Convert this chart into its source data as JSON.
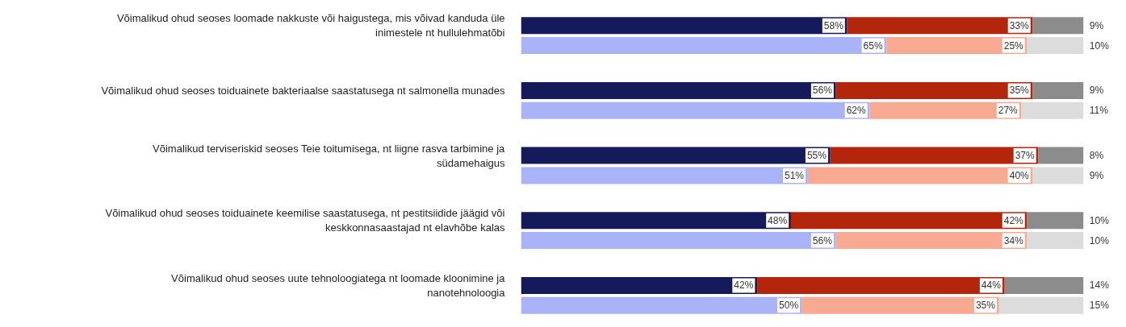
{
  "chart_data": {
    "type": "bar",
    "orientation": "horizontal",
    "stacked": true,
    "tick_labels": "y",
    "categories": [
      "Võimalikud ohud seoses loomade nakkuste või haigustega, mis võivad kanduda üle\ninimestele nt hullulehmatõbi",
      null,
      "Võimalikud ohud seoses toiduainete bakteriaalse saastatusega nt salmonella munades",
      null,
      "Võimalikud terviseriskid seoses Teie toitumisega, nt liigne rasva tarbimine ja\nsüdamehaigus",
      null,
      "Võimalikud ohud seoses toiduainete keemilise saastatusega, nt pestitsiidide jäägid või\nkeskkonnasaastajad nt elavhõbe kalas",
      null,
      "Võimalikud ohud seoses uute tehnoloogiatega nt loomade kloonimine ja\nnanotehnoloogia",
      null
    ],
    "series": [
      {
        "colors": [
          "#141a5a",
          "#a9b3f7",
          "#141a5a",
          "#a9b3f7",
          "#141a5a",
          "#a9b3f7",
          "#141a5a",
          "#a9b3f7",
          "#141a5a",
          "#a9b3f7"
        ],
        "values": [
          58,
          65,
          56,
          62,
          55,
          51,
          48,
          56,
          42,
          50
        ],
        "value_labels": [
          "58%",
          "65%",
          "56%",
          "62%",
          "55%",
          "51%",
          "48%",
          "56%",
          "42%",
          "50%"
        ]
      },
      {
        "colors": [
          "#b3260c",
          "#f7a991",
          "#b3260c",
          "#f7a991",
          "#b3260c",
          "#f7a991",
          "#b3260c",
          "#f7a991",
          "#b3260c",
          "#f7a991"
        ],
        "values": [
          33,
          25,
          35,
          27,
          37,
          40,
          42,
          34,
          44,
          35
        ],
        "value_labels": [
          "33%",
          "25%",
          "35%",
          "27%",
          "37%",
          "40%",
          "42%",
          "34%",
          "44%",
          "35%"
        ]
      },
      {
        "colors": [
          "#8c8c8c",
          "#dcdcdc",
          "#8c8c8c",
          "#dcdcdc",
          "#8c8c8c",
          "#dcdcdc",
          "#8c8c8c",
          "#dcdcdc",
          "#8c8c8c",
          "#dcdcdc"
        ],
        "values": [
          9,
          10,
          9,
          11,
          8,
          9,
          10,
          10,
          14,
          15
        ],
        "value_labels": [
          "9%",
          "10%",
          "9%",
          "11%",
          "8%",
          "9%",
          "10%",
          "10%",
          "14%",
          "15%"
        ]
      }
    ]
  }
}
